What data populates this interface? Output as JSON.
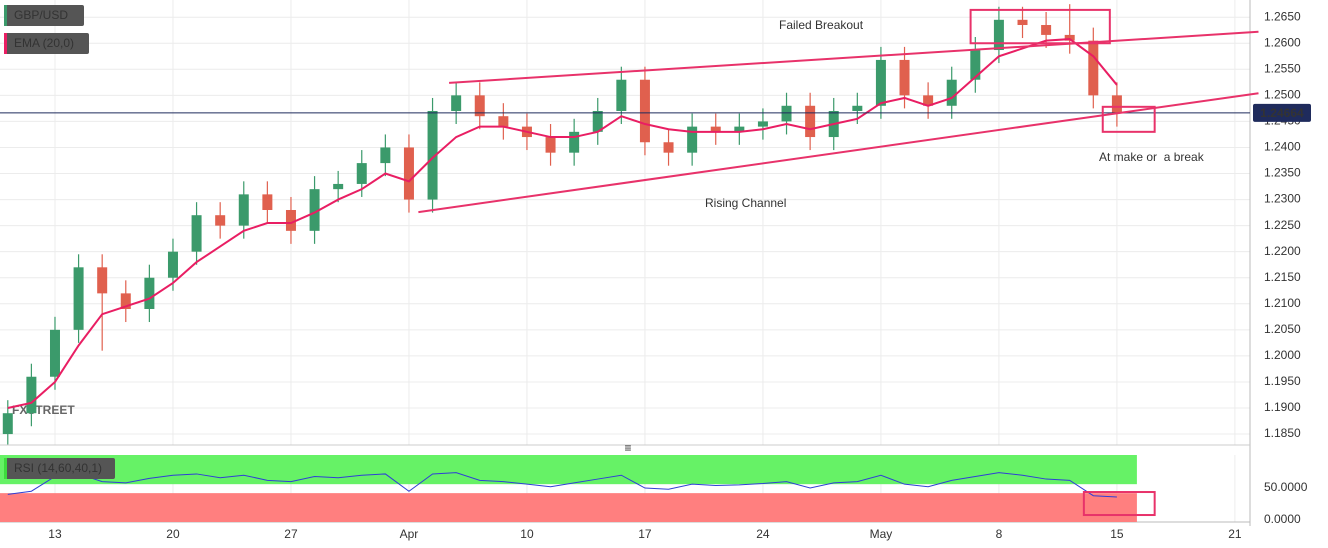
{
  "chart_data": {
    "type": "candlestick",
    "x": [
      -2,
      -1,
      0,
      1,
      2,
      3,
      4,
      5,
      6,
      7,
      8,
      9,
      10,
      11,
      12,
      13,
      14,
      15,
      16,
      17,
      18,
      19,
      20,
      21,
      22,
      23,
      24,
      25,
      26,
      27,
      28,
      29,
      30,
      31,
      32,
      33,
      34,
      35,
      36,
      37,
      38,
      39,
      40,
      41,
      42,
      43,
      44,
      45
    ],
    "series": [
      {
        "name": "GBP/USD",
        "type": "candlestick",
        "up_color": "#3b9a6b",
        "down_color": "#e0604e",
        "legend_color": "#3b9a6b",
        "open": [
          1.185,
          1.189,
          1.196,
          1.205,
          1.217,
          1.212,
          1.209,
          1.215,
          1.22,
          1.227,
          1.225,
          1.231,
          1.228,
          1.224,
          1.232,
          1.233,
          1.237,
          1.24,
          1.23,
          1.247,
          1.25,
          1.246,
          1.244,
          1.242,
          1.239,
          1.243,
          1.247,
          1.253,
          1.241,
          1.239,
          1.244,
          1.243,
          1.244,
          1.245,
          1.248,
          1.242,
          1.247,
          1.248,
          1.2568,
          1.25,
          1.248,
          1.253,
          1.2587,
          1.2645,
          1.2635,
          1.2616,
          1.2605,
          1.25
        ],
        "high": [
          1.1915,
          1.1985,
          1.2075,
          1.2195,
          1.2195,
          1.2145,
          1.2175,
          1.2225,
          1.2295,
          1.2295,
          1.2335,
          1.2335,
          1.2305,
          1.2345,
          1.2355,
          1.2395,
          1.2425,
          1.2425,
          1.2495,
          1.2525,
          1.2525,
          1.2485,
          1.2465,
          1.2445,
          1.2455,
          1.2495,
          1.2555,
          1.2555,
          1.2435,
          1.2465,
          1.2465,
          1.2465,
          1.2475,
          1.2505,
          1.2505,
          1.2495,
          1.2505,
          1.2593,
          1.2593,
          1.2525,
          1.2555,
          1.2612,
          1.267,
          1.267,
          1.266,
          1.2675,
          1.263,
          1.2525
        ],
        "low": [
          1.183,
          1.1865,
          1.1935,
          1.2025,
          1.201,
          1.2065,
          1.2065,
          1.2125,
          1.2175,
          1.2225,
          1.2225,
          1.2255,
          1.2215,
          1.2215,
          1.2295,
          1.2305,
          1.2345,
          1.2275,
          1.2275,
          1.2445,
          1.2435,
          1.2415,
          1.2395,
          1.2365,
          1.2365,
          1.2405,
          1.2445,
          1.2385,
          1.2365,
          1.2365,
          1.2405,
          1.2405,
          1.2415,
          1.2425,
          1.2395,
          1.2395,
          1.2445,
          1.2455,
          1.2475,
          1.2455,
          1.2455,
          1.2505,
          1.2562,
          1.261,
          1.2591,
          1.258,
          1.2475,
          1.244
        ],
        "close": [
          1.189,
          1.196,
          1.205,
          1.217,
          1.212,
          1.209,
          1.215,
          1.22,
          1.227,
          1.225,
          1.231,
          1.228,
          1.224,
          1.232,
          1.233,
          1.237,
          1.24,
          1.23,
          1.247,
          1.25,
          1.246,
          1.244,
          1.242,
          1.239,
          1.243,
          1.247,
          1.253,
          1.241,
          1.239,
          1.244,
          1.243,
          1.244,
          1.245,
          1.248,
          1.242,
          1.247,
          1.248,
          1.2568,
          1.25,
          1.248,
          1.253,
          1.2587,
          1.2645,
          1.2635,
          1.2616,
          1.2605,
          1.25,
          1.2466
        ]
      },
      {
        "name": "EMA (20,0)",
        "type": "line",
        "color": "#e91e63",
        "values": [
          1.19,
          1.191,
          1.195,
          1.202,
          1.208,
          1.2095,
          1.211,
          1.214,
          1.218,
          1.221,
          1.224,
          1.2255,
          1.2255,
          1.2275,
          1.23,
          1.232,
          1.235,
          1.2335,
          1.238,
          1.242,
          1.244,
          1.244,
          1.243,
          1.242,
          1.242,
          1.243,
          1.246,
          1.2445,
          1.2435,
          1.243,
          1.243,
          1.243,
          1.2435,
          1.2445,
          1.2435,
          1.2445,
          1.2455,
          1.2485,
          1.2495,
          1.248,
          1.2495,
          1.2535,
          1.2575,
          1.259,
          1.2605,
          1.2608,
          1.2575,
          1.252
        ]
      }
    ],
    "xlim": [
      -2.33,
      50.64
    ],
    "xticks": [
      {
        "value": 0,
        "label": "13"
      },
      {
        "value": 5,
        "label": "20"
      },
      {
        "value": 10,
        "label": "27"
      },
      {
        "value": 15,
        "label": "Apr"
      },
      {
        "value": 20,
        "label": "10"
      },
      {
        "value": 25,
        "label": "17"
      },
      {
        "value": 30,
        "label": "24"
      },
      {
        "value": 35,
        "label": "May"
      },
      {
        "value": 40,
        "label": "8"
      },
      {
        "value": 45,
        "label": "15"
      },
      {
        "value": 50,
        "label": "21"
      }
    ],
    "ylim": [
      1.1829,
      1.2683
    ],
    "yticks": [
      {
        "value": 1.185,
        "label": "1.1850"
      },
      {
        "value": 1.19,
        "label": "1.1900"
      },
      {
        "value": 1.195,
        "label": "1.1950"
      },
      {
        "value": 1.2,
        "label": "1.2000"
      },
      {
        "value": 1.205,
        "label": "1.2050"
      },
      {
        "value": 1.21,
        "label": "1.2100"
      },
      {
        "value": 1.215,
        "label": "1.2150"
      },
      {
        "value": 1.22,
        "label": "1.2200"
      },
      {
        "value": 1.225,
        "label": "1.2250"
      },
      {
        "value": 1.23,
        "label": "1.2300"
      },
      {
        "value": 1.235,
        "label": "1.2350"
      },
      {
        "value": 1.24,
        "label": "1.2400"
      },
      {
        "value": 1.245,
        "label": "1.2450"
      },
      {
        "value": 1.25,
        "label": "1.2500"
      },
      {
        "value": 1.255,
        "label": "1.2550"
      },
      {
        "value": 1.26,
        "label": "1.2600"
      },
      {
        "value": 1.265,
        "label": "1.2650"
      }
    ],
    "grid": true,
    "last_price": 1.24664,
    "annotation_color": "#e8326a",
    "annotations": [
      "Failed Breakout",
      "Rising Channel",
      "At make or  a break"
    ],
    "trendlines": [
      {
        "x": [
          16.7,
          51.0
        ],
        "y": [
          1.2524,
          1.2622
        ]
      },
      {
        "x": [
          15.4,
          51.0
        ],
        "y": [
          1.2276,
          1.2504
        ]
      }
    ],
    "boxes": [
      {
        "x": [
          38.8,
          44.7
        ],
        "y": [
          1.26,
          1.2664
        ]
      },
      {
        "x": [
          44.4,
          46.6
        ],
        "y": [
          1.243,
          1.2478
        ]
      }
    ],
    "watermark": "FXSTREET",
    "rsi": {
      "name": "RSI (14,60,40,1)",
      "color": "#2f3fd6",
      "legend_color": "#3ddc3d",
      "values": [
        40,
        45,
        68,
        72,
        60,
        58,
        65,
        70,
        72,
        66,
        70,
        62,
        60,
        68,
        66,
        70,
        72,
        45,
        72,
        74,
        62,
        60,
        56,
        52,
        58,
        64,
        70,
        50,
        48,
        56,
        54,
        55,
        57,
        60,
        50,
        58,
        60,
        70,
        56,
        52,
        62,
        68,
        74,
        70,
        64,
        62,
        38,
        36
      ],
      "ylim": [
        -3.1,
        101.6
      ],
      "yticks": [
        {
          "value": 0,
          "label": "0.0000"
        },
        {
          "value": 50,
          "label": "50.0000"
        }
      ],
      "bands": [
        {
          "from": 56,
          "to": 101.6,
          "color": "#66f266"
        },
        {
          "from": -3.1,
          "to": 42,
          "color": "#ff7f7f"
        }
      ],
      "box": {
        "x": [
          43.6,
          46.6
        ],
        "y": [
          7.8,
          43.75
        ]
      }
    }
  }
}
